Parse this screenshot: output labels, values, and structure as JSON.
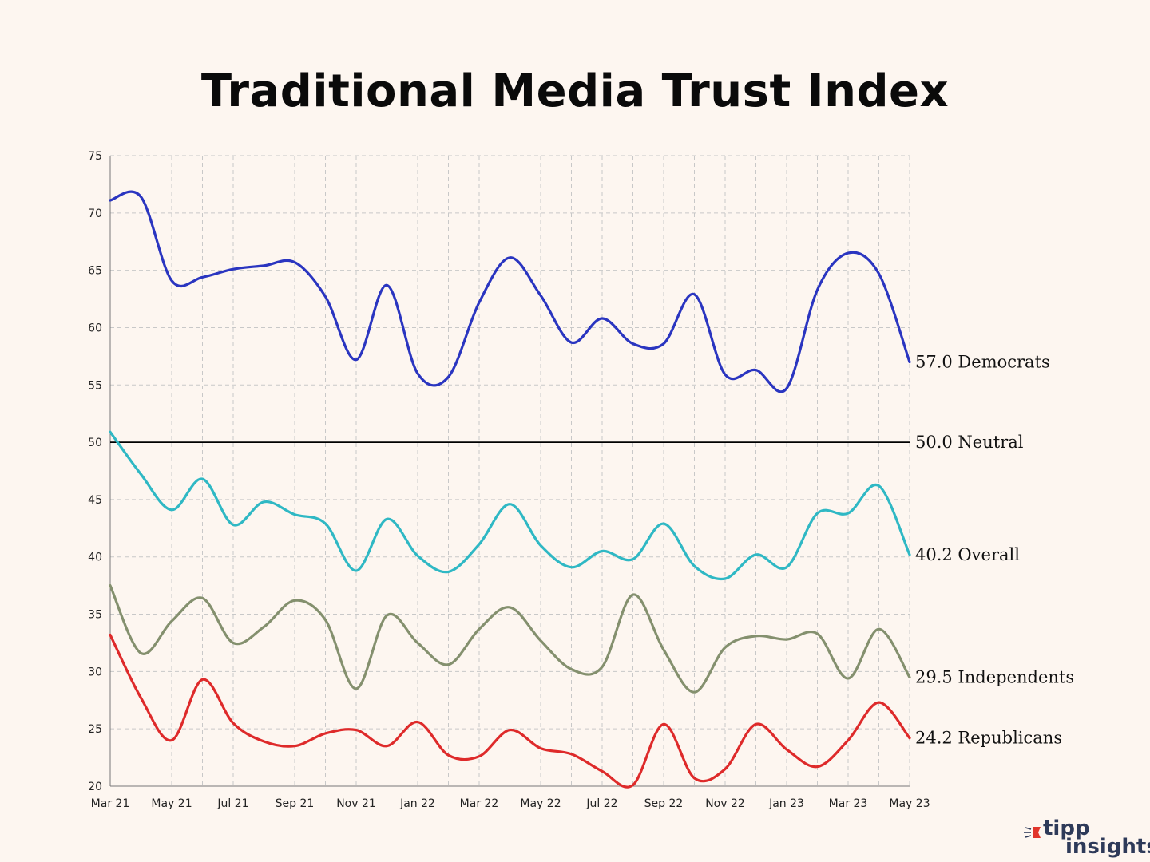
{
  "title": "Traditional Media Trust Index",
  "brand": {
    "word1": "tipp",
    "word2": "insights"
  },
  "colors": {
    "background": "#fdf6f0",
    "grid": "#c8c8c8",
    "neutral": "#000000",
    "democrats": "#2a35c0",
    "overall": "#2fb8c4",
    "independents": "#84906e",
    "republicans": "#de2a2a",
    "brand": "#2e3a59",
    "brand_accent": "#e1352b"
  },
  "chart_data": {
    "type": "line",
    "title": "Traditional Media Trust Index",
    "x_tick_labels": [
      "Mar 21",
      "May 21",
      "Jul 21",
      "Sep 21",
      "Nov 21",
      "Jan 22",
      "Mar 22",
      "May 22",
      "Jul 22",
      "Sep 22",
      "Nov 22",
      "Jan 23",
      "Mar 23",
      "May 23"
    ],
    "x_tick_every": 2,
    "ylim": [
      20,
      75
    ],
    "y_ticks": [
      20,
      25,
      30,
      35,
      40,
      45,
      50,
      55,
      60,
      65,
      70,
      75
    ],
    "grid": true,
    "reference_line": {
      "value": 50.0,
      "label": "50.0 Neutral"
    },
    "series": [
      {
        "name": "Democrats",
        "label": "57.0 Democrats",
        "color": "#2a35c0",
        "values": [
          71.1,
          71.4,
          64.1,
          64.4,
          65.1,
          65.4,
          65.7,
          62.7,
          57.2,
          63.7,
          56.0,
          55.7,
          62.2,
          66.1,
          62.8,
          58.7,
          60.8,
          58.6,
          58.6,
          62.9,
          55.9,
          56.3,
          54.7,
          63.3,
          66.5,
          64.7,
          57.0
        ]
      },
      {
        "name": "Overall",
        "label": "40.2 Overall",
        "color": "#2fb8c4",
        "values": [
          50.9,
          47.2,
          44.1,
          46.8,
          42.8,
          44.8,
          43.7,
          42.9,
          38.8,
          43.3,
          40.1,
          38.7,
          41.1,
          44.6,
          41.0,
          39.1,
          40.5,
          39.8,
          42.9,
          39.2,
          38.1,
          40.2,
          39.1,
          43.8,
          43.8,
          46.2,
          40.2
        ]
      },
      {
        "name": "Independents",
        "label": "29.5 Independents",
        "color": "#84906e",
        "values": [
          37.5,
          31.6,
          34.4,
          36.4,
          32.5,
          33.9,
          36.2,
          34.5,
          28.5,
          34.9,
          32.5,
          30.6,
          33.7,
          35.6,
          32.7,
          30.2,
          30.4,
          36.7,
          31.9,
          28.2,
          32.1,
          33.1,
          32.8,
          33.3,
          29.4,
          33.7,
          29.5
        ]
      },
      {
        "name": "Republicans",
        "label": "24.2 Republicans",
        "color": "#de2a2a",
        "values": [
          33.2,
          27.7,
          24.0,
          29.3,
          25.5,
          23.9,
          23.5,
          24.6,
          24.9,
          23.5,
          25.6,
          22.7,
          22.6,
          24.9,
          23.3,
          22.8,
          21.3,
          20.1,
          25.4,
          20.7,
          21.5,
          25.4,
          23.2,
          21.7,
          24.0,
          27.3,
          24.2
        ]
      }
    ]
  }
}
